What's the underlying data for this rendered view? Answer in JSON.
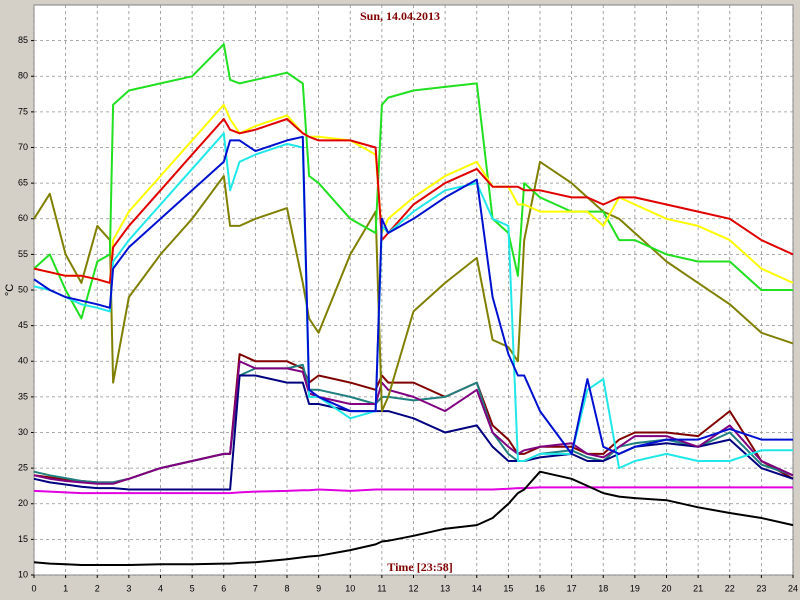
{
  "chart_data": {
    "type": "line",
    "title": "Sun, 14.04.2013",
    "x_label": "Time [23:58]",
    "y_label": "°C",
    "xlim": [
      0,
      24
    ],
    "ylim": [
      10,
      90
    ],
    "grid": true,
    "xticks": [
      0,
      1,
      2,
      3,
      4,
      5,
      6,
      7,
      8,
      9,
      10,
      11,
      12,
      13,
      14,
      15,
      16,
      17,
      18,
      19,
      20,
      21,
      22,
      23,
      24
    ],
    "yticks": [
      10,
      15,
      20,
      25,
      30,
      35,
      40,
      45,
      50,
      55,
      60,
      65,
      70,
      75,
      80,
      85
    ],
    "x": [
      0,
      0.5,
      1,
      1.5,
      2,
      2.4,
      2.5,
      3,
      4,
      5,
      6,
      6.2,
      6.5,
      7,
      8,
      8.5,
      8.7,
      9,
      10,
      10.8,
      11,
      11.2,
      12,
      13,
      14,
      14.5,
      15,
      15.3,
      15.5,
      16,
      17,
      17.5,
      18,
      18.5,
      19,
      20,
      21,
      22,
      23,
      24
    ],
    "series": [
      {
        "color": "#800000",
        "values": [
          24,
          23.7,
          23.4,
          23.2,
          23,
          23,
          23,
          23.5,
          25,
          26,
          27,
          27,
          41,
          40,
          40,
          39,
          37,
          38,
          37,
          36,
          38,
          37,
          37,
          35,
          37,
          31,
          29,
          27,
          27,
          28,
          28,
          27,
          27,
          29,
          30,
          30,
          29.5,
          33,
          26,
          23.5
        ]
      },
      {
        "color": "#208080",
        "values": [
          24.5,
          24,
          23.6,
          23.2,
          23,
          23,
          23,
          23.5,
          25,
          26,
          27,
          27,
          38,
          39,
          39,
          39.5,
          36,
          36,
          35,
          34,
          35,
          35,
          34.5,
          35,
          37,
          30,
          27,
          26,
          26,
          27,
          27.5,
          26.5,
          26,
          28,
          28.5,
          29,
          28,
          30,
          25.5,
          24
        ]
      },
      {
        "color": "#000080",
        "values": [
          23.5,
          23,
          22.7,
          22.4,
          22.2,
          22.2,
          22.2,
          22,
          22,
          22,
          22,
          22,
          38,
          38,
          37,
          37,
          34,
          34,
          33,
          33,
          33,
          33,
          32,
          30,
          31,
          28,
          26,
          26,
          26,
          26.5,
          27,
          26,
          26,
          27,
          28,
          28.5,
          28,
          29,
          25,
          23.5
        ]
      },
      {
        "color": "#800080",
        "values": [
          24,
          23.5,
          23.2,
          23,
          22.8,
          22.8,
          22.8,
          23.5,
          25,
          26,
          27,
          27,
          40,
          39,
          39,
          38.5,
          35.5,
          35,
          34,
          34,
          37,
          36,
          35,
          33,
          36,
          30,
          28,
          27,
          27.5,
          28,
          28.5,
          27,
          26.5,
          28,
          29.5,
          29.5,
          28,
          31,
          26,
          24
        ]
      },
      {
        "color": "#e000e0",
        "values": [
          21.8,
          21.7,
          21.6,
          21.5,
          21.5,
          21.5,
          21.5,
          21.5,
          21.5,
          21.5,
          21.5,
          21.5,
          21.6,
          21.7,
          21.8,
          21.9,
          21.9,
          22,
          21.8,
          22,
          22,
          22,
          22,
          22,
          22,
          22,
          22.1,
          22.2,
          22.2,
          22.3,
          22.3,
          22.3,
          22.3,
          22.3,
          22.3,
          22.3,
          22.3,
          22.3,
          22.3,
          22.3
        ]
      },
      {
        "color": "#000000",
        "values": [
          11.8,
          11.6,
          11.5,
          11.4,
          11.4,
          11.4,
          11.4,
          11.4,
          11.5,
          11.5,
          11.6,
          11.6,
          11.7,
          11.8,
          12.2,
          12.5,
          12.6,
          12.7,
          13.5,
          14.3,
          14.7,
          14.8,
          15.5,
          16.5,
          17,
          18,
          20,
          21.5,
          22,
          24.5,
          23.5,
          22.5,
          21.5,
          21,
          20.8,
          20.5,
          19.5,
          18.7,
          18,
          17
        ]
      },
      {
        "color": "#808000",
        "values": [
          60,
          63.5,
          55,
          51,
          59,
          57,
          37,
          49,
          55,
          60,
          66,
          59,
          59,
          60,
          61.5,
          51,
          46,
          44,
          55,
          61,
          33,
          35,
          47,
          51,
          54.5,
          43,
          42,
          40,
          57,
          68,
          65,
          63,
          61,
          60,
          58,
          54,
          51,
          48,
          44,
          42.5
        ]
      },
      {
        "color": "#20e020",
        "values": [
          53,
          55,
          50,
          46,
          54,
          55,
          76,
          78,
          79,
          80,
          84.5,
          79.5,
          79,
          79.5,
          80.5,
          79,
          66,
          65,
          60,
          58,
          76,
          77,
          78,
          78.5,
          79,
          60,
          58,
          52,
          65,
          63,
          61,
          61,
          61,
          57,
          57,
          55,
          54,
          54,
          50,
          50
        ]
      },
      {
        "color": "#ffff00",
        "values": [
          53,
          52.5,
          52,
          52,
          51.5,
          51,
          57,
          61,
          66,
          71,
          76,
          74,
          72,
          73,
          74.5,
          72,
          71.5,
          71.5,
          71,
          69,
          58,
          60,
          63,
          66,
          68,
          64.5,
          64.5,
          62,
          62,
          61,
          61,
          61,
          59,
          63,
          62,
          60,
          59,
          57,
          53,
          51
        ]
      },
      {
        "color": "#e00000",
        "values": [
          53,
          52.5,
          52,
          52,
          51.5,
          51,
          56,
          59,
          64,
          69,
          74,
          72.5,
          72,
          72.5,
          74,
          72,
          71.5,
          71,
          71,
          70,
          57,
          58,
          62,
          65,
          67,
          64.5,
          64.5,
          64.5,
          64,
          64,
          63,
          63,
          62,
          63,
          63,
          62,
          61,
          60,
          57,
          55
        ]
      },
      {
        "color": "#20e8e8",
        "values": [
          50.5,
          50,
          49,
          48,
          47.5,
          47,
          54,
          57,
          62,
          67,
          72,
          64,
          68,
          69,
          70.5,
          70,
          35,
          35,
          32,
          33,
          59,
          58,
          61,
          64,
          65,
          60,
          59,
          26,
          26,
          27,
          27,
          36,
          37.5,
          25,
          26,
          27,
          26,
          26,
          27.5,
          27.5
        ]
      },
      {
        "color": "#0010d0",
        "values": [
          51.5,
          50,
          49,
          48.5,
          48,
          47.5,
          53,
          56,
          60,
          64,
          68,
          71,
          71,
          69.5,
          71,
          71.5,
          36,
          35,
          33,
          33,
          60,
          58,
          60,
          63,
          65.5,
          49,
          41,
          38,
          38,
          33,
          27,
          37.5,
          28,
          27,
          28,
          29,
          29,
          30.5,
          29,
          29
        ]
      }
    ]
  }
}
